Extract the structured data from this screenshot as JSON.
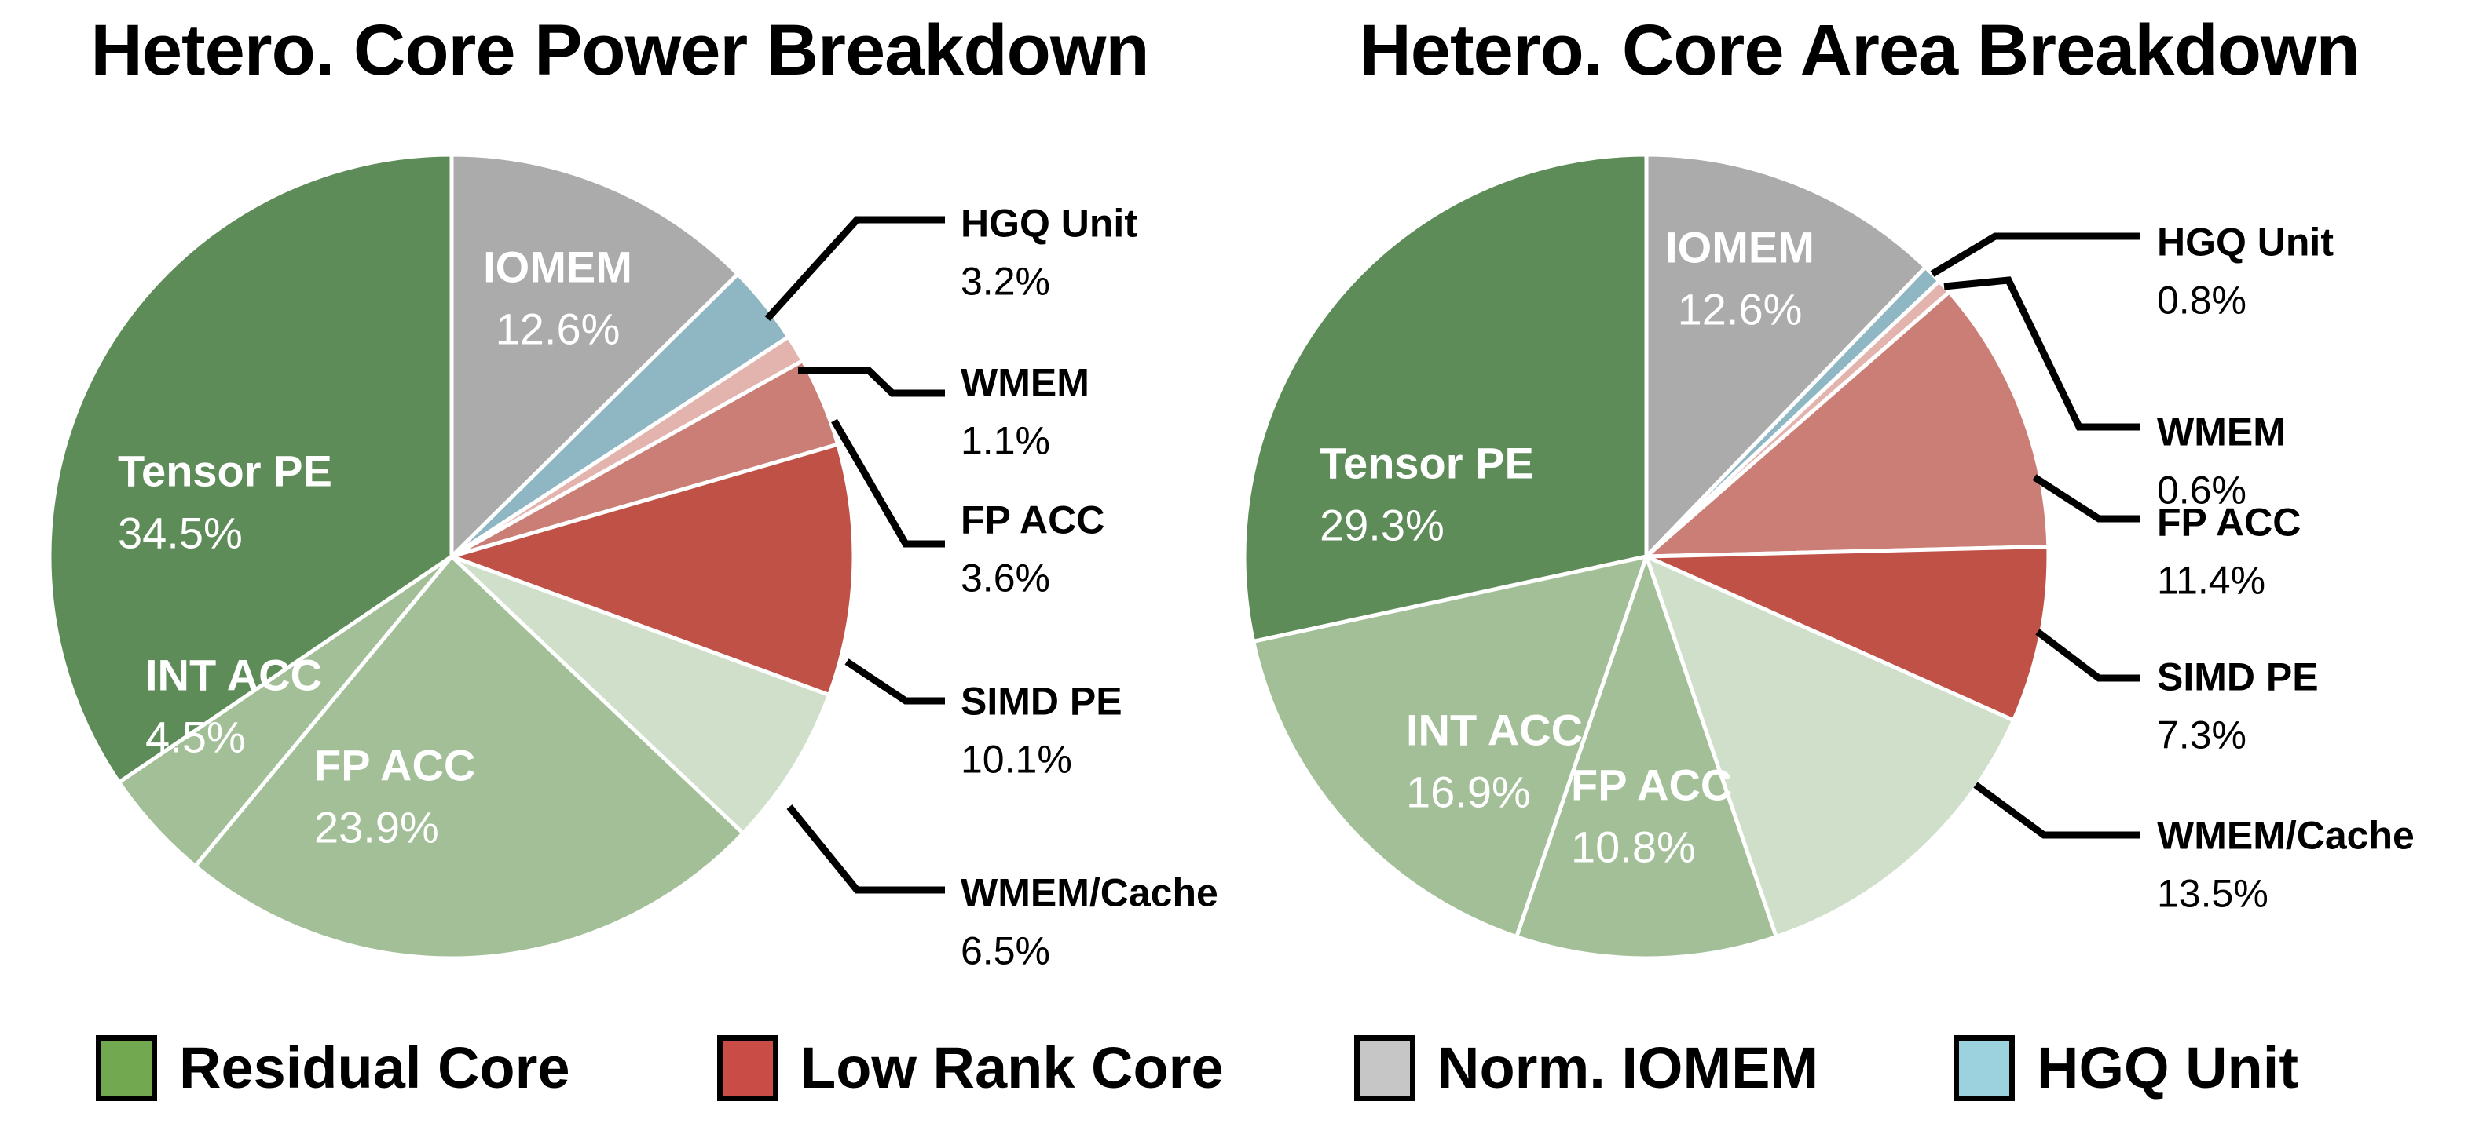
{
  "chart_data": [
    {
      "type": "pie",
      "title": "Hetero. Core Power Breakdown",
      "units": "%",
      "start_angle_deg": 90,
      "direction": "clockwise",
      "slices": [
        {
          "label": "IOMEM",
          "value": 12.6,
          "pct_label": "12.6%",
          "color": "#ababab",
          "color_group": "Norm. IOMEM",
          "label_style": "inside"
        },
        {
          "label": "HGQ Unit",
          "value": 3.2,
          "pct_label": "3.2%",
          "color": "#8fb6c3",
          "color_group": "HGQ Unit",
          "label_style": "callout"
        },
        {
          "label": "WMEM",
          "value": 1.1,
          "pct_label": "1.1%",
          "color": "#e3b3ae",
          "color_group": "Low Rank Core",
          "label_style": "callout"
        },
        {
          "label": "FP ACC",
          "value": 3.6,
          "pct_label": "3.6%",
          "color": "#cb7e76",
          "color_group": "Low Rank Core",
          "label_style": "callout"
        },
        {
          "label": "SIMD PE",
          "value": 10.1,
          "pct_label": "10.1%",
          "color": "#c05147",
          "color_group": "Low Rank Core",
          "label_style": "callout"
        },
        {
          "label": "WMEM/Cache",
          "value": 6.5,
          "pct_label": "6.5%",
          "color": "#cfdfc9",
          "color_group": "Residual Core",
          "label_style": "callout"
        },
        {
          "label": "FP ACC",
          "value": 23.9,
          "pct_label": "23.9%",
          "color": "#a2bf97",
          "color_group": "Residual Core",
          "label_style": "inside"
        },
        {
          "label": "INT ACC",
          "value": 4.5,
          "pct_label": "4.5%",
          "color": "#a2bf97",
          "color_group": "Residual Core",
          "label_style": "inside"
        },
        {
          "label": "Tensor PE",
          "value": 34.5,
          "pct_label": "34.5%",
          "color": "#5e8c58",
          "color_group": "Residual Core",
          "label_style": "inside"
        }
      ]
    },
    {
      "type": "pie",
      "title": "Hetero. Core Area Breakdown",
      "units": "%",
      "start_angle_deg": 90,
      "direction": "clockwise",
      "slices": [
        {
          "label": "IOMEM",
          "value": 12.6,
          "pct_label": "12.6%",
          "color": "#ababab",
          "color_group": "Norm. IOMEM",
          "label_style": "inside"
        },
        {
          "label": "HGQ Unit",
          "value": 0.8,
          "pct_label": "0.8%",
          "color": "#8fb6c3",
          "color_group": "HGQ Unit",
          "label_style": "callout"
        },
        {
          "label": "WMEM",
          "value": 0.6,
          "pct_label": "0.6%",
          "color": "#e3b3ae",
          "color_group": "Low Rank Core",
          "label_style": "callout"
        },
        {
          "label": "FP ACC",
          "value": 11.4,
          "pct_label": "11.4%",
          "color": "#cb7e76",
          "color_group": "Low Rank Core",
          "label_style": "callout"
        },
        {
          "label": "SIMD PE",
          "value": 7.3,
          "pct_label": "7.3%",
          "color": "#c05147",
          "color_group": "Low Rank Core",
          "label_style": "callout"
        },
        {
          "label": "WMEM/Cache",
          "value": 13.5,
          "pct_label": "13.5%",
          "color": "#cfdfc9",
          "color_group": "Residual Core",
          "label_style": "callout"
        },
        {
          "label": "FP ACC",
          "value": 10.8,
          "pct_label": "10.8%",
          "color": "#a2bf97",
          "color_group": "Residual Core",
          "label_style": "inside"
        },
        {
          "label": "INT ACC",
          "value": 16.9,
          "pct_label": "16.9%",
          "color": "#a2bf97",
          "color_group": "Residual Core",
          "label_style": "inside"
        },
        {
          "label": "Tensor PE",
          "value": 29.3,
          "pct_label": "29.3%",
          "color": "#5e8c58",
          "color_group": "Residual Core",
          "label_style": "inside"
        }
      ]
    }
  ],
  "legend": {
    "items": [
      {
        "label": "Residual Core",
        "color": "#72a850"
      },
      {
        "label": "Low Rank Core",
        "color": "#c94c47"
      },
      {
        "label": "Norm. IOMEM",
        "color": "#c6c6c6"
      },
      {
        "label": "HGQ Unit",
        "color": "#9cd2de"
      }
    ]
  }
}
